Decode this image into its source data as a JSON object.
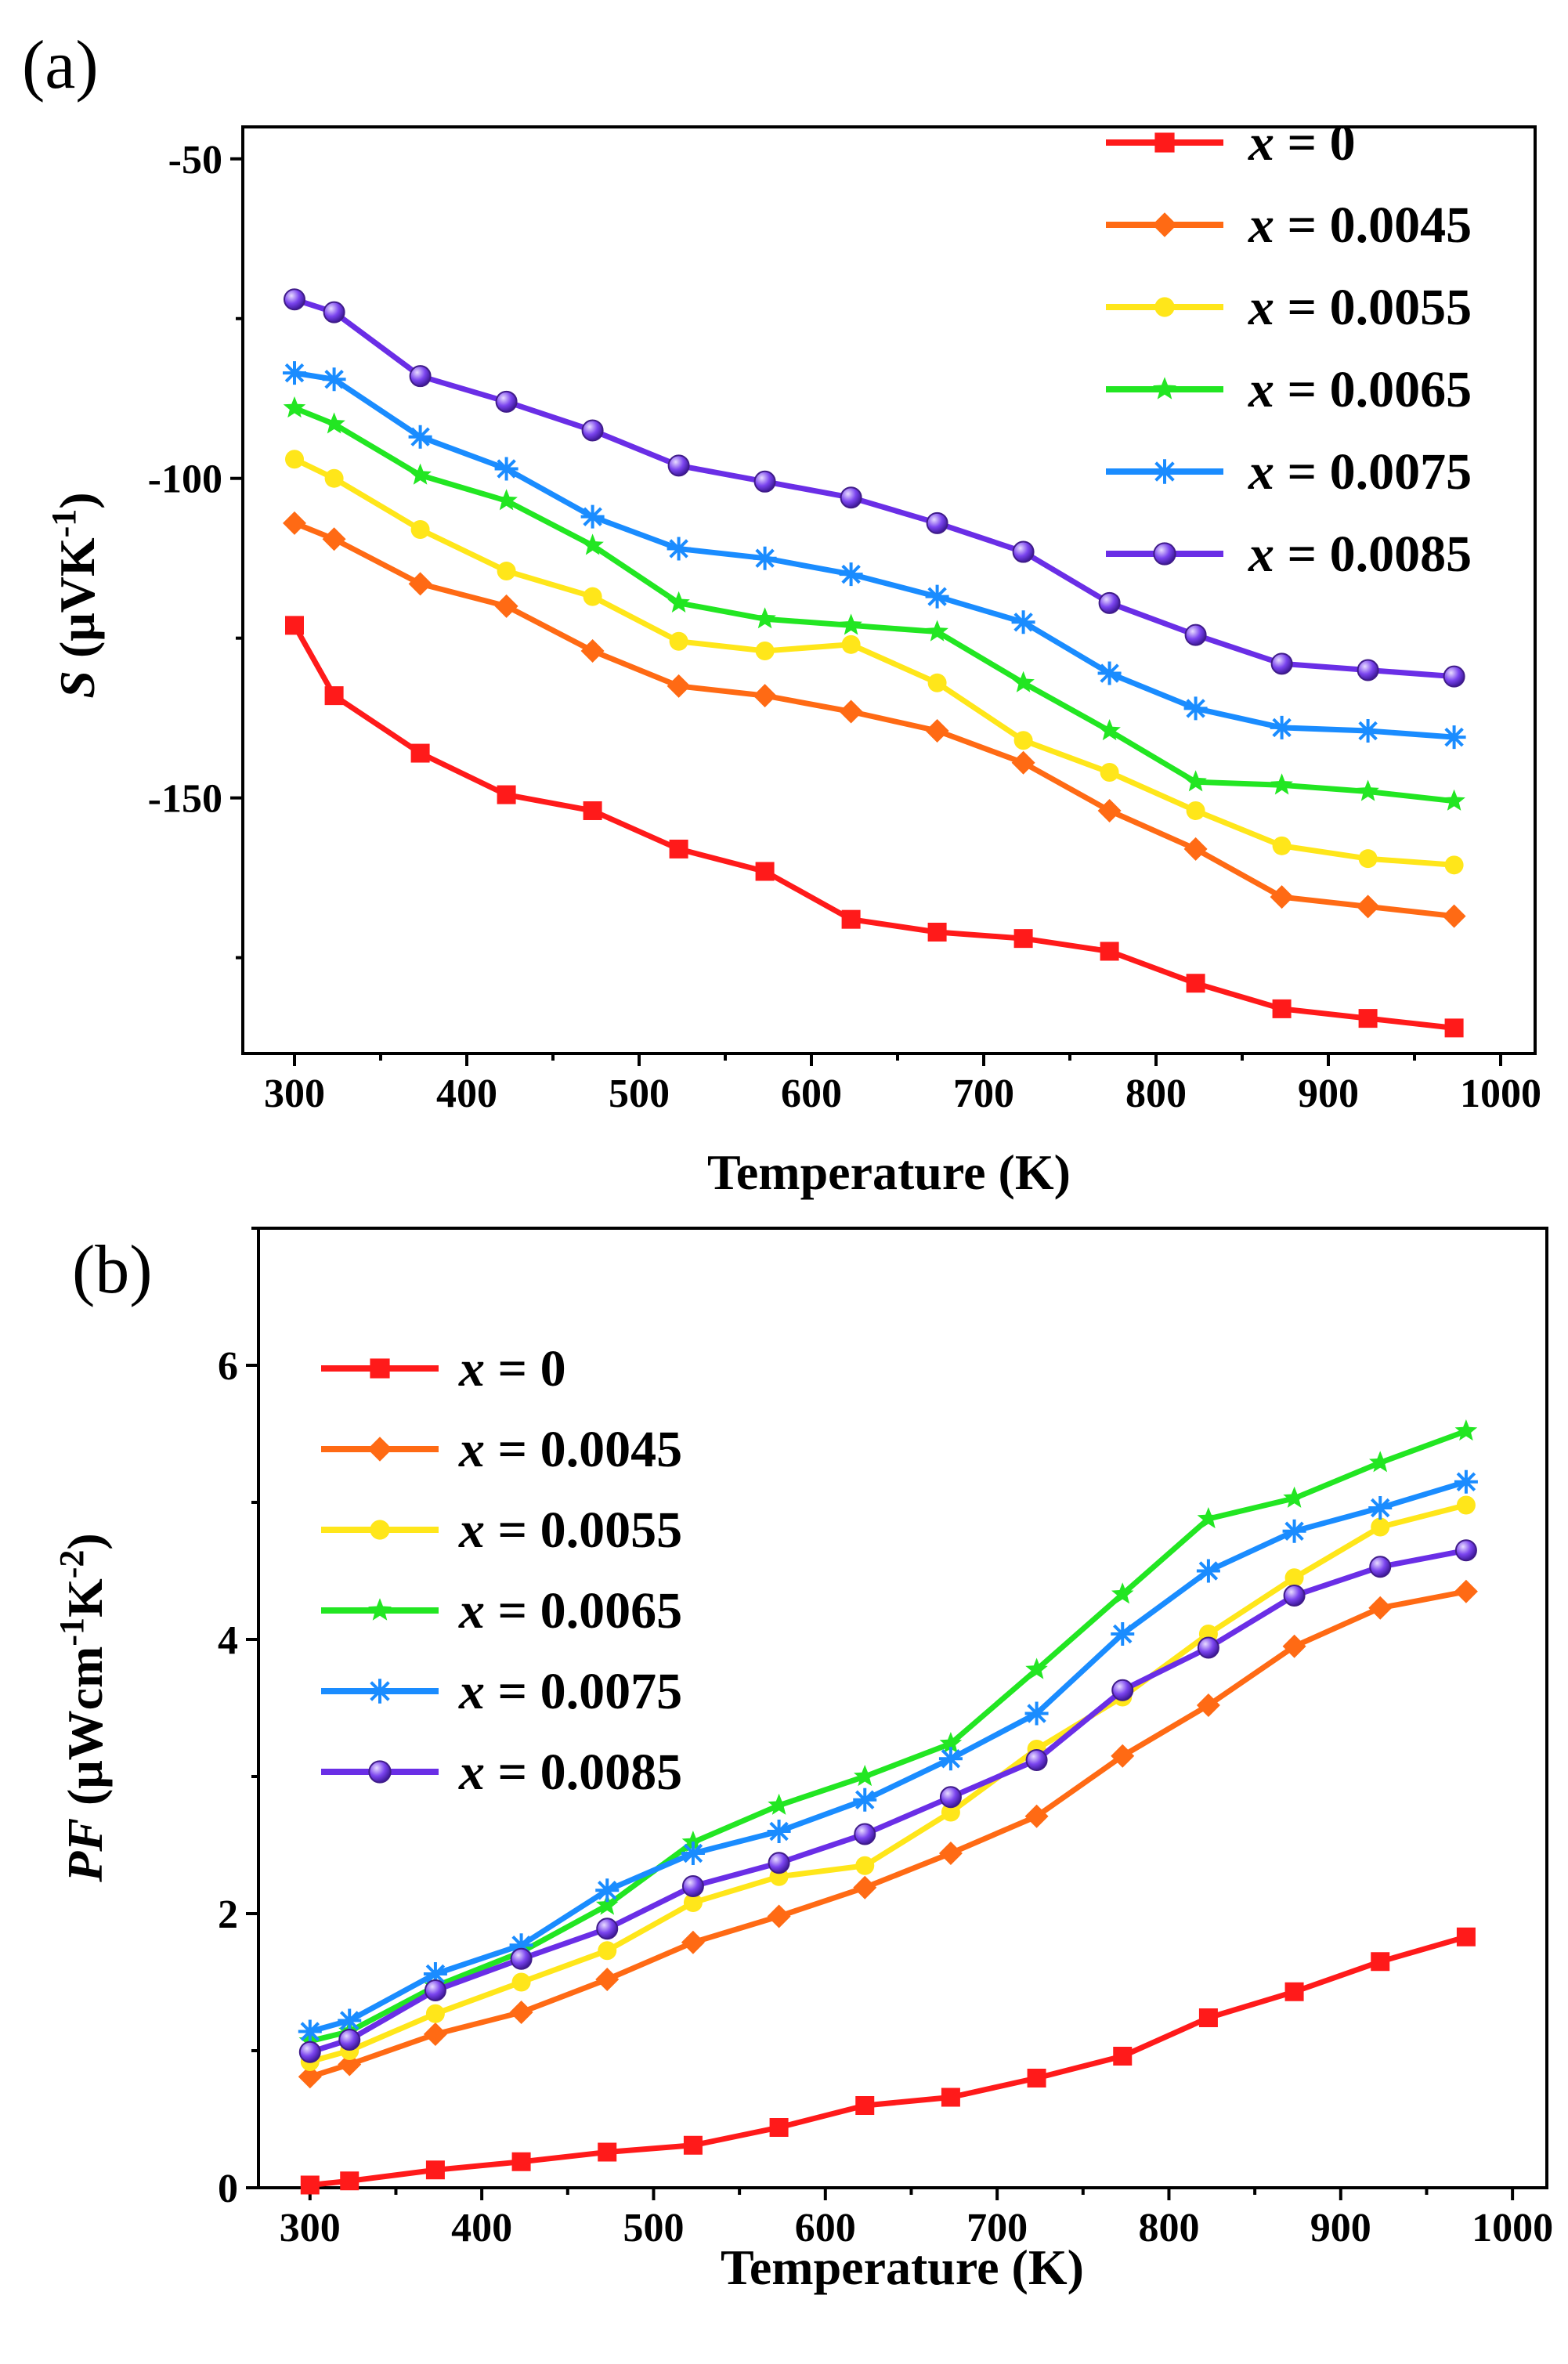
{
  "chart_data": [
    {
      "type": "line",
      "panel_label": "(a)",
      "xlabel": "Temperature (K)",
      "ylabel": {
        "symbol": "S",
        "unit_open": " (μVK",
        "unit_sup": "-1",
        "unit_close": ")"
      },
      "xlim": [
        270,
        1020
      ],
      "ylim": [
        -190,
        -45
      ],
      "xticks": [
        300,
        400,
        500,
        600,
        700,
        800,
        900,
        1000
      ],
      "yticks": [
        -150,
        -100,
        -50
      ],
      "legend_position": "top-right",
      "x": [
        300,
        323,
        373,
        423,
        473,
        523,
        573,
        623,
        673,
        723,
        773,
        823,
        873,
        923,
        973
      ],
      "series": [
        {
          "name": "x = 0",
          "var": "x",
          "val": " = 0",
          "color": "#ff1a1a",
          "marker": "square",
          "values": [
            -123,
            -134,
            -143,
            -149.5,
            -152,
            -158,
            -161.5,
            -169,
            -171,
            -172,
            -174,
            -179,
            -183,
            -184.5,
            -186
          ]
        },
        {
          "name": "x = 0.0045",
          "var": "x",
          "val": " = 0.0045",
          "color": "#ff6a14",
          "marker": "diamond",
          "values": [
            -107,
            -109.5,
            -116.5,
            -120,
            -127,
            -132.5,
            -134,
            -136.5,
            -139.5,
            -144.5,
            -152,
            -158,
            -165.5,
            -167,
            -168.5
          ]
        },
        {
          "name": "x = 0.0055",
          "var": "x",
          "val": " = 0.0055",
          "color": "#ffe61a",
          "marker": "circle",
          "values": [
            -97,
            -100,
            -108,
            -114.5,
            -118.5,
            -125.5,
            -127,
            -126,
            -132,
            -141,
            -146,
            -152,
            -157.5,
            -159.5,
            -160.5
          ]
        },
        {
          "name": "x = 0.0065",
          "var": "x",
          "val": " = 0.0065",
          "color": "#22e622",
          "marker": "star",
          "values": [
            -89,
            -91.5,
            -99.5,
            -103.5,
            -110.5,
            -119.5,
            -122,
            -123,
            -124,
            -132,
            -139.5,
            -147.5,
            -148,
            -149,
            -150.5
          ]
        },
        {
          "name": "x = 0.0075",
          "var": "x",
          "val": " = 0.0075",
          "color": "#1a8cff",
          "marker": "asterisk",
          "values": [
            -83.5,
            -84.5,
            -93.5,
            -98.5,
            -106,
            -111,
            -112.5,
            -115,
            -118.5,
            -122.5,
            -130.5,
            -136,
            -139,
            -139.5,
            -140.5
          ]
        },
        {
          "name": "x = 0.0085",
          "var": "x",
          "val": " = 0.0085",
          "color": "#6a2ee6",
          "marker": "sphere",
          "values": [
            -72,
            -74,
            -84,
            -88,
            -92.5,
            -98,
            -100.5,
            -103,
            -107,
            -111.5,
            -119.5,
            -124.5,
            -129,
            -130,
            -131
          ]
        }
      ]
    },
    {
      "type": "line",
      "panel_label": "(b)",
      "xlabel": "Temperature (K)",
      "ylabel": {
        "symbol": "PF",
        "unit_open": " (μWcm",
        "unit_sup": "-1",
        "unit_mid": "K",
        "unit_sup2": "-2",
        "unit_close": ")"
      },
      "xlim": [
        270,
        1020
      ],
      "ylim": [
        0,
        7
      ],
      "xticks": [
        300,
        400,
        500,
        600,
        700,
        800,
        900,
        1000
      ],
      "yticks": [
        0,
        2,
        4,
        6
      ],
      "legend_position": "top-left",
      "x": [
        300,
        323,
        373,
        423,
        473,
        523,
        573,
        623,
        673,
        723,
        773,
        823,
        873,
        923,
        973
      ],
      "series": [
        {
          "name": "x = 0",
          "var": "x",
          "val": " = 0",
          "color": "#ff1a1a",
          "marker": "square",
          "values": [
            0.02,
            0.05,
            0.13,
            0.19,
            0.26,
            0.31,
            0.44,
            0.6,
            0.66,
            0.8,
            0.96,
            1.24,
            1.43,
            1.65,
            1.83
          ]
        },
        {
          "name": "x = 0.0045",
          "var": "x",
          "val": " = 0.0045",
          "color": "#ff6a14",
          "marker": "diamond",
          "values": [
            0.81,
            0.9,
            1.12,
            1.28,
            1.52,
            1.79,
            1.98,
            2.19,
            2.44,
            2.71,
            3.15,
            3.52,
            3.95,
            4.23,
            4.35
          ]
        },
        {
          "name": "x = 0.0055",
          "var": "x",
          "val": " = 0.0055",
          "color": "#ffe61a",
          "marker": "circle",
          "values": [
            0.92,
            1.0,
            1.27,
            1.5,
            1.73,
            2.08,
            2.27,
            2.35,
            2.74,
            3.2,
            3.58,
            4.04,
            4.45,
            4.82,
            4.98
          ]
        },
        {
          "name": "x = 0.0065",
          "var": "x",
          "val": " = 0.0065",
          "color": "#22e622",
          "marker": "star",
          "values": [
            1.07,
            1.14,
            1.47,
            1.72,
            2.06,
            2.52,
            2.79,
            3.0,
            3.24,
            3.78,
            4.33,
            4.88,
            5.03,
            5.29,
            5.52
          ]
        },
        {
          "name": "x = 0.0075",
          "var": "x",
          "val": " = 0.0075",
          "color": "#1a8cff",
          "marker": "asterisk",
          "values": [
            1.14,
            1.22,
            1.56,
            1.77,
            2.17,
            2.44,
            2.6,
            2.83,
            3.13,
            3.46,
            4.04,
            4.5,
            4.79,
            4.96,
            5.15
          ]
        },
        {
          "name": "x = 0.0085",
          "var": "x",
          "val": " = 0.0085",
          "color": "#6a2ee6",
          "marker": "sphere",
          "values": [
            0.99,
            1.08,
            1.44,
            1.67,
            1.89,
            2.2,
            2.37,
            2.58,
            2.85,
            3.12,
            3.63,
            3.94,
            4.32,
            4.53,
            4.65
          ]
        }
      ]
    }
  ]
}
